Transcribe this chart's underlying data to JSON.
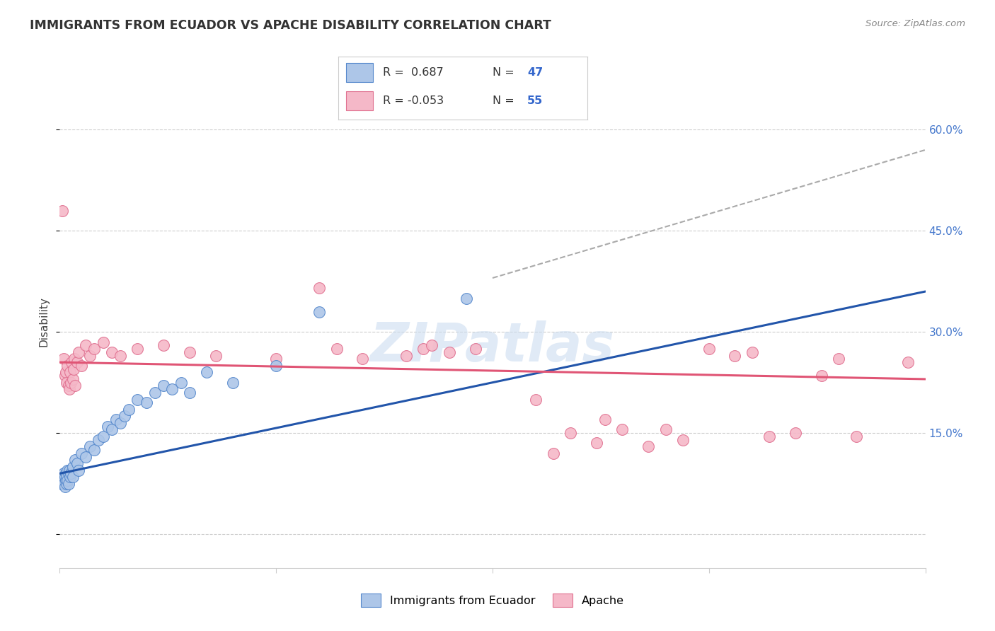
{
  "title": "IMMIGRANTS FROM ECUADOR VS APACHE DISABILITY CORRELATION CHART",
  "source": "Source: ZipAtlas.com",
  "ylabel": "Disability",
  "xlim": [
    0,
    100
  ],
  "ylim": [
    -5,
    68
  ],
  "ytick_vals": [
    0,
    15,
    30,
    45,
    60
  ],
  "ytick_labels": [
    "",
    "15.0%",
    "30.0%",
    "45.0%",
    "60.0%"
  ],
  "background_color": "#ffffff",
  "grid_color": "#cccccc",
  "watermark": "ZIPatlas",
  "ecuador_color": "#adc6e8",
  "apache_color": "#f5b8c8",
  "ecuador_edge_color": "#5588cc",
  "apache_edge_color": "#e07090",
  "ecuador_line_color": "#2255aa",
  "apache_line_color": "#e05575",
  "trend_line_color": "#aaaaaa",
  "ecuador_scatter": [
    [
      0.2,
      7.5
    ],
    [
      0.3,
      8.0
    ],
    [
      0.4,
      8.5
    ],
    [
      0.5,
      9.0
    ],
    [
      0.5,
      7.5
    ],
    [
      0.6,
      8.5
    ],
    [
      0.6,
      7.0
    ],
    [
      0.7,
      9.0
    ],
    [
      0.7,
      8.0
    ],
    [
      0.8,
      8.5
    ],
    [
      0.8,
      7.5
    ],
    [
      0.9,
      9.5
    ],
    [
      0.9,
      8.0
    ],
    [
      1.0,
      9.0
    ],
    [
      1.0,
      7.5
    ],
    [
      1.1,
      9.5
    ],
    [
      1.2,
      8.5
    ],
    [
      1.3,
      9.0
    ],
    [
      1.5,
      10.0
    ],
    [
      1.5,
      8.5
    ],
    [
      1.8,
      11.0
    ],
    [
      2.0,
      10.5
    ],
    [
      2.2,
      9.5
    ],
    [
      2.5,
      12.0
    ],
    [
      3.0,
      11.5
    ],
    [
      3.5,
      13.0
    ],
    [
      4.0,
      12.5
    ],
    [
      4.5,
      14.0
    ],
    [
      5.0,
      14.5
    ],
    [
      5.5,
      16.0
    ],
    [
      6.0,
      15.5
    ],
    [
      6.5,
      17.0
    ],
    [
      7.0,
      16.5
    ],
    [
      7.5,
      17.5
    ],
    [
      8.0,
      18.5
    ],
    [
      9.0,
      20.0
    ],
    [
      10.0,
      19.5
    ],
    [
      11.0,
      21.0
    ],
    [
      12.0,
      22.0
    ],
    [
      13.0,
      21.5
    ],
    [
      14.0,
      22.5
    ],
    [
      15.0,
      21.0
    ],
    [
      17.0,
      24.0
    ],
    [
      20.0,
      22.5
    ],
    [
      25.0,
      25.0
    ],
    [
      30.0,
      33.0
    ],
    [
      47.0,
      35.0
    ]
  ],
  "apache_scatter": [
    [
      0.3,
      48.0
    ],
    [
      0.5,
      26.0
    ],
    [
      0.6,
      23.5
    ],
    [
      0.7,
      24.0
    ],
    [
      0.8,
      22.5
    ],
    [
      0.9,
      25.0
    ],
    [
      1.0,
      22.0
    ],
    [
      1.1,
      21.5
    ],
    [
      1.2,
      24.0
    ],
    [
      1.3,
      22.5
    ],
    [
      1.4,
      25.5
    ],
    [
      1.5,
      23.0
    ],
    [
      1.6,
      24.5
    ],
    [
      1.7,
      26.0
    ],
    [
      1.8,
      22.0
    ],
    [
      2.0,
      25.5
    ],
    [
      2.2,
      27.0
    ],
    [
      2.5,
      25.0
    ],
    [
      3.0,
      28.0
    ],
    [
      3.5,
      26.5
    ],
    [
      4.0,
      27.5
    ],
    [
      5.0,
      28.5
    ],
    [
      6.0,
      27.0
    ],
    [
      7.0,
      26.5
    ],
    [
      9.0,
      27.5
    ],
    [
      12.0,
      28.0
    ],
    [
      15.0,
      27.0
    ],
    [
      18.0,
      26.5
    ],
    [
      25.0,
      26.0
    ],
    [
      30.0,
      36.5
    ],
    [
      32.0,
      27.5
    ],
    [
      35.0,
      26.0
    ],
    [
      40.0,
      26.5
    ],
    [
      42.0,
      27.5
    ],
    [
      43.0,
      28.0
    ],
    [
      45.0,
      27.0
    ],
    [
      48.0,
      27.5
    ],
    [
      55.0,
      20.0
    ],
    [
      57.0,
      12.0
    ],
    [
      59.0,
      15.0
    ],
    [
      62.0,
      13.5
    ],
    [
      63.0,
      17.0
    ],
    [
      65.0,
      15.5
    ],
    [
      68.0,
      13.0
    ],
    [
      70.0,
      15.5
    ],
    [
      72.0,
      14.0
    ],
    [
      75.0,
      27.5
    ],
    [
      78.0,
      26.5
    ],
    [
      80.0,
      27.0
    ],
    [
      82.0,
      14.5
    ],
    [
      85.0,
      15.0
    ],
    [
      88.0,
      23.5
    ],
    [
      90.0,
      26.0
    ],
    [
      92.0,
      14.5
    ],
    [
      98.0,
      25.5
    ]
  ],
  "ecuador_trend": [
    0,
    100,
    9.0,
    36.0
  ],
  "apache_trend": [
    0,
    100,
    25.5,
    23.0
  ],
  "dashed_trend": [
    50,
    100,
    38.0,
    57.0
  ]
}
